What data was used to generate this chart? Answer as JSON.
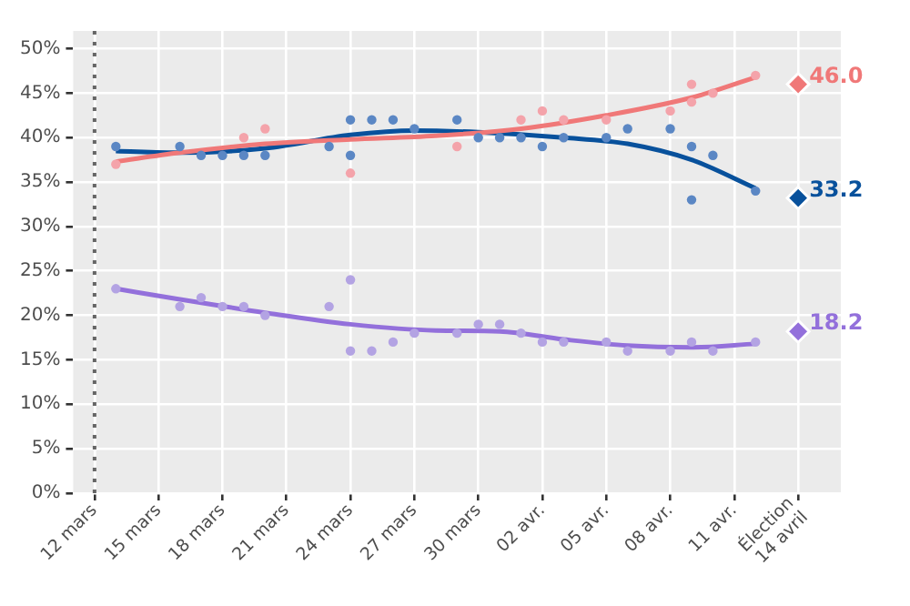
{
  "chart_data": {
    "type": "scatter",
    "xlim": [
      "--03-11",
      "--04-16"
    ],
    "xticks": [
      {
        "value": "--03-12",
        "label": "12 mars"
      },
      {
        "value": "--03-15",
        "label": "15 mars"
      },
      {
        "value": "--03-18",
        "label": "18 mars"
      },
      {
        "value": "--03-21",
        "label": "21 mars"
      },
      {
        "value": "--03-24",
        "label": "24 mars"
      },
      {
        "value": "--03-27",
        "label": "27 mars"
      },
      {
        "value": "--03-30",
        "label": "30 mars"
      },
      {
        "value": "--04-02",
        "label": "02 avr."
      },
      {
        "value": "--04-05",
        "label": "05 avr."
      },
      {
        "value": "--04-08",
        "label": "08 avr."
      },
      {
        "value": "--04-11",
        "label": "11 avr."
      },
      {
        "value": "--04-14",
        "label": "Élection\n14 avril"
      }
    ],
    "ylim": [
      0,
      52
    ],
    "yticks": [
      {
        "value": 0,
        "label": "0%"
      },
      {
        "value": 5,
        "label": "5%"
      },
      {
        "value": 10,
        "label": "10%"
      },
      {
        "value": 15,
        "label": "15%"
      },
      {
        "value": 20,
        "label": "20%"
      },
      {
        "value": 25,
        "label": "25%"
      },
      {
        "value": 30,
        "label": "30%"
      },
      {
        "value": 35,
        "label": "35%"
      },
      {
        "value": 40,
        "label": "40%"
      },
      {
        "value": 45,
        "label": "45%"
      },
      {
        "value": 50,
        "label": "50%"
      }
    ],
    "grid": true,
    "legend": false,
    "ref_lines": [
      {
        "axis": "x",
        "value": "--03-12",
        "color": "#666666",
        "line_style": "dotted"
      }
    ],
    "series": [
      {
        "marker": "circle",
        "color": "#f4a3aa",
        "x": [
          "--03-13",
          "--03-19",
          "--03-20",
          "--03-24",
          "--03-29",
          "--04-01",
          "--04-02",
          "--04-03",
          "--04-05",
          "--04-08",
          "--04-09",
          "--04-09",
          "--04-10",
          "--04-12"
        ],
        "values": [
          37,
          40,
          41,
          36,
          39,
          42,
          43,
          42,
          42,
          43,
          46,
          44,
          45,
          47
        ]
      },
      {
        "marker": "circle",
        "color": "#5b87c4",
        "x": [
          "--03-13",
          "--03-16",
          "--03-17",
          "--03-18",
          "--03-19",
          "--03-20",
          "--03-23",
          "--03-24",
          "--03-24",
          "--03-25",
          "--03-26",
          "--03-27",
          "--03-29",
          "--03-30",
          "--03-31",
          "--04-01",
          "--04-02",
          "--04-03",
          "--04-05",
          "--04-06",
          "--04-08",
          "--04-09",
          "--04-09",
          "--04-10",
          "--04-12"
        ],
        "values": [
          39,
          39,
          38,
          38,
          38,
          38,
          39,
          42,
          38,
          42,
          42,
          41,
          42,
          40,
          40,
          40,
          39,
          40,
          40,
          41,
          41,
          39,
          33,
          38,
          34
        ]
      },
      {
        "marker": "circle",
        "color": "#b3a3e3",
        "x": [
          "--03-13",
          "--03-16",
          "--03-17",
          "--03-18",
          "--03-19",
          "--03-20",
          "--03-23",
          "--03-24",
          "--03-24",
          "--03-25",
          "--03-26",
          "--03-27",
          "--03-29",
          "--03-30",
          "--03-31",
          "--04-01",
          "--04-02",
          "--04-03",
          "--04-05",
          "--04-06",
          "--04-08",
          "--04-09",
          "--04-10",
          "--04-12"
        ],
        "values": [
          23,
          21,
          22,
          21,
          21,
          20,
          21,
          24,
          16,
          16,
          17,
          18,
          18,
          19,
          19,
          18,
          17,
          17,
          17,
          16,
          16,
          17,
          16,
          17
        ]
      },
      {
        "type": "line",
        "marker": "none",
        "color": "#f07878",
        "x": [
          "--03-13",
          "--03-16",
          "--03-20",
          "--03-24",
          "--03-28",
          "--04-01",
          "--04-05",
          "--04-09",
          "--04-12"
        ],
        "values": [
          37.3,
          38.3,
          39.3,
          39.8,
          40.2,
          41,
          42.5,
          44.5,
          46.8
        ]
      },
      {
        "type": "line",
        "marker": "none",
        "color": "#08519c",
        "x": [
          "--03-13",
          "--03-16",
          "--03-20",
          "--03-24",
          "--03-27",
          "--03-30",
          "--04-03",
          "--04-06",
          "--04-09",
          "--04-12"
        ],
        "values": [
          38.5,
          38.3,
          38.8,
          40.3,
          40.8,
          40.6,
          40,
          39.3,
          37.5,
          34.3
        ]
      },
      {
        "type": "line",
        "marker": "none",
        "color": "#9370db",
        "x": [
          "--03-13",
          "--03-16",
          "--03-20",
          "--03-24",
          "--03-28",
          "--03-31",
          "--04-03",
          "--04-06",
          "--04-09",
          "--04-12"
        ],
        "values": [
          23,
          21.8,
          20.3,
          19,
          18.3,
          18.2,
          17.3,
          16.6,
          16.4,
          16.8
        ]
      },
      {
        "marker": "diamond",
        "color": "#f07878",
        "x": [
          "--04-14"
        ],
        "values": [
          46.0
        ],
        "value_labels": [
          "46.0"
        ]
      },
      {
        "marker": "diamond",
        "color": "#08519c",
        "x": [
          "--04-14"
        ],
        "values": [
          33.2
        ],
        "value_labels": [
          "33.2"
        ]
      },
      {
        "marker": "diamond",
        "color": "#9370db",
        "x": [
          "--04-14"
        ],
        "values": [
          18.2
        ],
        "value_labels": [
          "18.2"
        ]
      }
    ]
  }
}
